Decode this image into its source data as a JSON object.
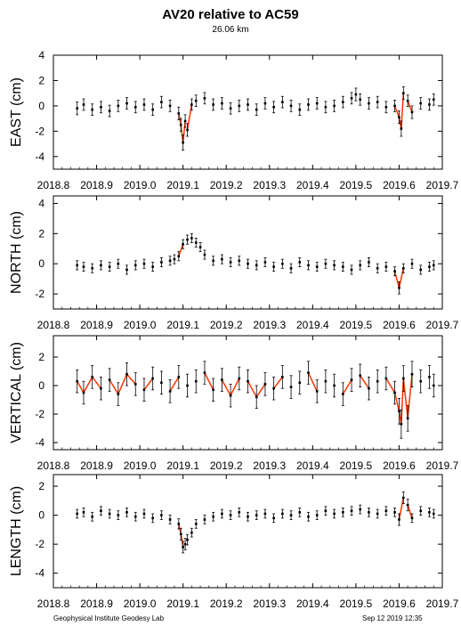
{
  "title": "AV20 relative to AC59",
  "subtitle": "26.06 km",
  "footer_left": "Geophysical Institute Geodesy Lab",
  "footer_right": "Sep 12 2019 12:35",
  "colors": {
    "points": "#000000",
    "highlight": "#ff3300",
    "frame": "#000000"
  },
  "chart_data": [
    {
      "type": "scatter",
      "ylabel": "EAST (cm)",
      "xlim": [
        2018.8,
        2019.7
      ],
      "ylim": [
        -5,
        4
      ],
      "xticks": [
        "2018.8",
        "2018.9",
        "2019.0",
        "2019.1",
        "2019.2",
        "2019.3",
        "2019.4",
        "2019.5",
        "2019.6",
        "2019.7"
      ],
      "yticks": [
        "-4",
        "-2",
        "0",
        "2",
        "4"
      ],
      "series_note": "daily position with error bars",
      "x": [
        2018.855,
        2018.87,
        2018.89,
        2018.91,
        2018.93,
        2018.95,
        2018.97,
        2018.99,
        2019.01,
        2019.03,
        2019.05,
        2019.07,
        2019.09,
        2019.095,
        2019.1,
        2019.105,
        2019.11,
        2019.12,
        2019.13,
        2019.15,
        2019.17,
        2019.19,
        2019.21,
        2019.23,
        2019.25,
        2019.27,
        2019.29,
        2019.31,
        2019.33,
        2019.35,
        2019.37,
        2019.39,
        2019.41,
        2019.43,
        2019.45,
        2019.47,
        2019.49,
        2019.5,
        2019.51,
        2019.53,
        2019.55,
        2019.57,
        2019.59,
        2019.6,
        2019.605,
        2019.61,
        2019.62,
        2019.63,
        2019.65,
        2019.67,
        2019.68
      ],
      "y": [
        -0.2,
        0.1,
        -0.3,
        -0.1,
        -0.4,
        0.0,
        0.2,
        -0.1,
        0.1,
        -0.3,
        0.3,
        0.0,
        -0.6,
        -1.5,
        -2.9,
        -1.2,
        -1.9,
        0.1,
        0.4,
        0.6,
        0.1,
        0.2,
        -0.2,
        0.0,
        0.1,
        -0.3,
        0.2,
        -0.1,
        0.3,
        0.0,
        -0.3,
        0.1,
        0.2,
        -0.1,
        0.0,
        0.3,
        0.6,
        0.9,
        0.5,
        0.2,
        0.3,
        -0.1,
        0.0,
        -0.9,
        -1.8,
        1.0,
        0.4,
        -0.5,
        0.2,
        0.1,
        0.5
      ],
      "errors": [
        0.5,
        0.45,
        0.45,
        0.45,
        0.45,
        0.45,
        0.45,
        0.45,
        0.45,
        0.45,
        0.45,
        0.45,
        0.5,
        0.5,
        0.6,
        0.5,
        0.5,
        0.45,
        0.45,
        0.45,
        0.45,
        0.45,
        0.45,
        0.45,
        0.45,
        0.45,
        0.45,
        0.45,
        0.45,
        0.45,
        0.45,
        0.45,
        0.45,
        0.45,
        0.45,
        0.45,
        0.45,
        0.5,
        0.45,
        0.45,
        0.45,
        0.45,
        0.45,
        0.5,
        0.6,
        0.5,
        0.45,
        0.5,
        0.45,
        0.45,
        0.45
      ]
    },
    {
      "type": "scatter",
      "ylabel": "NORTH (cm)",
      "xlim": [
        2018.8,
        2019.7
      ],
      "ylim": [
        -3,
        4.5
      ],
      "xticks": [
        "2018.8",
        "2018.9",
        "2019.0",
        "2019.1",
        "2019.2",
        "2019.3",
        "2019.4",
        "2019.5",
        "2019.6",
        "2019.7"
      ],
      "yticks": [
        "-2",
        "0",
        "2",
        "4"
      ],
      "x": [
        2018.855,
        2018.87,
        2018.89,
        2018.91,
        2018.93,
        2018.95,
        2018.97,
        2018.99,
        2019.01,
        2019.03,
        2019.05,
        2019.07,
        2019.08,
        2019.09,
        2019.1,
        2019.11,
        2019.12,
        2019.13,
        2019.14,
        2019.15,
        2019.17,
        2019.19,
        2019.21,
        2019.23,
        2019.25,
        2019.27,
        2019.29,
        2019.31,
        2019.33,
        2019.35,
        2019.37,
        2019.39,
        2019.41,
        2019.43,
        2019.45,
        2019.47,
        2019.49,
        2019.51,
        2019.53,
        2019.55,
        2019.57,
        2019.59,
        2019.6,
        2019.61,
        2019.63,
        2019.65,
        2019.67,
        2019.68
      ],
      "y": [
        -0.1,
        -0.2,
        -0.3,
        -0.1,
        -0.2,
        0.0,
        -0.4,
        -0.1,
        0.0,
        -0.2,
        0.1,
        0.2,
        0.3,
        0.5,
        1.3,
        1.6,
        1.7,
        1.4,
        1.1,
        0.6,
        0.2,
        0.3,
        0.1,
        0.2,
        0.0,
        -0.1,
        0.1,
        -0.2,
        0.0,
        -0.3,
        0.1,
        -0.1,
        -0.2,
        0.0,
        -0.1,
        -0.2,
        -0.4,
        -0.1,
        0.1,
        -0.3,
        -0.2,
        -0.5,
        -1.6,
        -0.3,
        0.0,
        -0.4,
        -0.2,
        -0.1
      ],
      "errors": [
        0.3,
        0.3,
        0.3,
        0.3,
        0.3,
        0.3,
        0.3,
        0.3,
        0.3,
        0.3,
        0.3,
        0.3,
        0.3,
        0.3,
        0.3,
        0.3,
        0.3,
        0.3,
        0.3,
        0.3,
        0.3,
        0.3,
        0.3,
        0.3,
        0.3,
        0.3,
        0.3,
        0.3,
        0.3,
        0.3,
        0.3,
        0.3,
        0.3,
        0.3,
        0.3,
        0.3,
        0.3,
        0.3,
        0.3,
        0.3,
        0.3,
        0.3,
        0.4,
        0.3,
        0.3,
        0.3,
        0.3,
        0.3
      ]
    },
    {
      "type": "scatter",
      "ylabel": "VERTICAL (cm)",
      "xlim": [
        2018.8,
        2019.7
      ],
      "ylim": [
        -4.5,
        3.5
      ],
      "xticks": [
        "2018.8",
        "2018.9",
        "2019.0",
        "2019.1",
        "2019.2",
        "2019.3",
        "2019.4",
        "2019.5",
        "2019.6",
        "2019.7"
      ],
      "yticks": [
        "-4",
        "-2",
        "0",
        "2"
      ],
      "x": [
        2018.855,
        2018.87,
        2018.89,
        2018.91,
        2018.93,
        2018.95,
        2018.97,
        2018.99,
        2019.01,
        2019.03,
        2019.05,
        2019.07,
        2019.09,
        2019.11,
        2019.13,
        2019.15,
        2019.17,
        2019.19,
        2019.21,
        2019.23,
        2019.25,
        2019.27,
        2019.29,
        2019.31,
        2019.33,
        2019.35,
        2019.37,
        2019.39,
        2019.41,
        2019.43,
        2019.45,
        2019.47,
        2019.49,
        2019.51,
        2019.53,
        2019.55,
        2019.57,
        2019.59,
        2019.6,
        2019.605,
        2019.61,
        2019.62,
        2019.63,
        2019.65,
        2019.67,
        2019.68
      ],
      "y": [
        0.3,
        -0.5,
        0.6,
        -0.2,
        0.4,
        -0.6,
        0.8,
        0.1,
        -0.3,
        0.5,
        0.2,
        -0.4,
        0.6,
        0.0,
        0.3,
        0.9,
        -0.3,
        0.4,
        -0.7,
        0.5,
        0.3,
        -0.8,
        0.1,
        -0.2,
        0.6,
        -0.1,
        0.2,
        0.9,
        -0.4,
        0.3,
        0.0,
        -0.6,
        0.4,
        0.7,
        -0.2,
        0.3,
        0.5,
        -0.5,
        -1.8,
        -2.7,
        0.5,
        -2.3,
        0.8,
        0.3,
        0.6,
        0.0
      ],
      "errors": [
        0.8,
        0.8,
        0.8,
        0.8,
        0.8,
        0.8,
        0.8,
        0.8,
        0.8,
        0.8,
        0.8,
        0.8,
        0.8,
        0.8,
        0.8,
        0.8,
        0.8,
        0.8,
        0.8,
        0.8,
        0.8,
        0.8,
        0.8,
        0.8,
        0.8,
        0.8,
        0.8,
        0.8,
        0.8,
        0.8,
        0.8,
        0.8,
        0.8,
        0.8,
        0.8,
        0.8,
        0.8,
        0.8,
        0.9,
        1.0,
        0.9,
        0.9,
        0.9,
        0.8,
        0.8,
        0.8
      ]
    },
    {
      "type": "scatter",
      "ylabel": "LENGTH (cm)",
      "xlim": [
        2018.8,
        2019.7
      ],
      "ylim": [
        -5,
        2.8
      ],
      "xticks": [
        "2018.8",
        "2018.9",
        "2019.0",
        "2019.1",
        "2019.2",
        "2019.3",
        "2019.4",
        "2019.5",
        "2019.6",
        "2019.7"
      ],
      "yticks": [
        "-4",
        "-2",
        "0",
        "2"
      ],
      "x": [
        2018.855,
        2018.87,
        2018.89,
        2018.91,
        2018.93,
        2018.95,
        2018.97,
        2018.99,
        2019.01,
        2019.03,
        2019.05,
        2019.07,
        2019.09,
        2019.095,
        2019.1,
        2019.105,
        2019.11,
        2019.12,
        2019.13,
        2019.15,
        2019.17,
        2019.19,
        2019.21,
        2019.23,
        2019.25,
        2019.27,
        2019.29,
        2019.31,
        2019.33,
        2019.35,
        2019.37,
        2019.39,
        2019.41,
        2019.43,
        2019.45,
        2019.47,
        2019.49,
        2019.51,
        2019.53,
        2019.55,
        2019.57,
        2019.59,
        2019.6,
        2019.61,
        2019.62,
        2019.63,
        2019.65,
        2019.67,
        2019.68
      ],
      "y": [
        0.1,
        0.2,
        -0.1,
        0.3,
        0.1,
        0.0,
        0.2,
        -0.1,
        0.1,
        -0.2,
        0.0,
        -0.3,
        -0.6,
        -1.3,
        -2.2,
        -2.0,
        -1.7,
        -1.2,
        -0.6,
        -0.3,
        -0.1,
        0.1,
        0.0,
        0.2,
        -0.1,
        0.0,
        0.1,
        -0.2,
        0.1,
        0.0,
        0.2,
        -0.1,
        0.0,
        0.3,
        0.1,
        0.2,
        0.3,
        0.4,
        0.2,
        0.1,
        0.3,
        0.2,
        -0.3,
        1.2,
        0.7,
        -0.2,
        0.3,
        0.2,
        0.1
      ],
      "errors": [
        0.3,
        0.3,
        0.3,
        0.3,
        0.3,
        0.3,
        0.3,
        0.3,
        0.3,
        0.3,
        0.3,
        0.3,
        0.35,
        0.4,
        0.4,
        0.4,
        0.35,
        0.3,
        0.3,
        0.3,
        0.3,
        0.3,
        0.3,
        0.3,
        0.3,
        0.3,
        0.3,
        0.3,
        0.3,
        0.3,
        0.3,
        0.3,
        0.3,
        0.3,
        0.3,
        0.3,
        0.3,
        0.3,
        0.3,
        0.3,
        0.3,
        0.3,
        0.4,
        0.4,
        0.4,
        0.3,
        0.3,
        0.3,
        0.3
      ]
    }
  ]
}
